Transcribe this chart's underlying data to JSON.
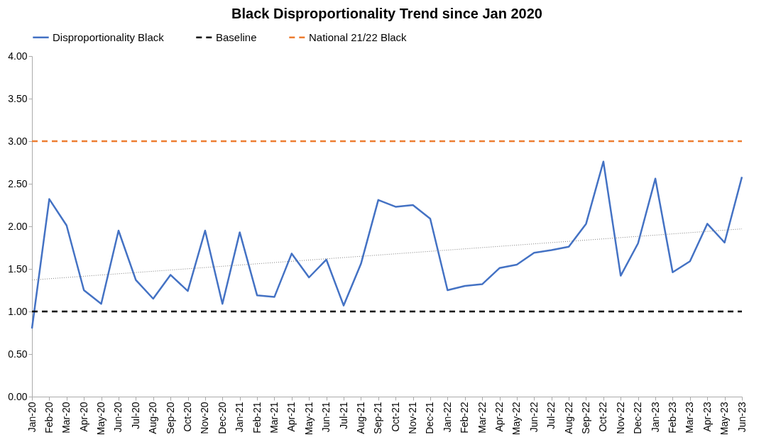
{
  "chart_data": {
    "type": "line",
    "title": "Black Disproportionality Trend since Jan 2020",
    "categories": [
      "Jan-20",
      "Feb-20",
      "Mar-20",
      "Apr-20",
      "May-20",
      "Jun-20",
      "Jul-20",
      "Aug-20",
      "Sep-20",
      "Oct-20",
      "Nov-20",
      "Dec-20",
      "Jan-21",
      "Feb-21",
      "Mar-21",
      "Apr-21",
      "May-21",
      "Jun-21",
      "Jul-21",
      "Aug-21",
      "Sep-21",
      "Oct-21",
      "Nov-21",
      "Dec-21",
      "Jan-22",
      "Feb-22",
      "Mar-22",
      "Apr-22",
      "May-22",
      "Jun-22",
      "Jul-22",
      "Aug-22",
      "Sep-22",
      "Oct-22",
      "Nov-22",
      "Dec-22",
      "Jan-23",
      "Feb-23",
      "Mar-23",
      "Apr-23",
      "May-23",
      "Jun-23"
    ],
    "series": [
      {
        "name": "Disproportionality Black",
        "color": "#4472c4",
        "line_style": "solid",
        "values": [
          0.8,
          2.32,
          2.01,
          1.25,
          1.09,
          1.95,
          1.37,
          1.15,
          1.43,
          1.24,
          1.95,
          1.09,
          1.93,
          1.19,
          1.17,
          1.68,
          1.4,
          1.61,
          1.07,
          1.56,
          2.31,
          2.23,
          2.25,
          2.09,
          1.25,
          1.3,
          1.32,
          1.51,
          1.55,
          1.69,
          1.72,
          1.76,
          2.03,
          2.76,
          1.42,
          1.8,
          2.56,
          1.46,
          1.59,
          2.03,
          1.81,
          2.58
        ]
      },
      {
        "name": "Baseline",
        "color": "#000000",
        "line_style": "dashed",
        "values": [
          1,
          1,
          1,
          1,
          1,
          1,
          1,
          1,
          1,
          1,
          1,
          1,
          1,
          1,
          1,
          1,
          1,
          1,
          1,
          1,
          1,
          1,
          1,
          1,
          1,
          1,
          1,
          1,
          1,
          1,
          1,
          1,
          1,
          1,
          1,
          1,
          1,
          1,
          1,
          1,
          1,
          1
        ]
      },
      {
        "name": "National 21/22 Black",
        "color": "#ed7d31",
        "line_style": "dashed",
        "values": [
          3,
          3,
          3,
          3,
          3,
          3,
          3,
          3,
          3,
          3,
          3,
          3,
          3,
          3,
          3,
          3,
          3,
          3,
          3,
          3,
          3,
          3,
          3,
          3,
          3,
          3,
          3,
          3,
          3,
          3,
          3,
          3,
          3,
          3,
          3,
          3,
          3,
          3,
          3,
          3,
          3,
          3
        ]
      },
      {
        "type": "line",
        "color": "#808080",
        "line_style": "dotted",
        "x": [
          "Jan-20",
          "Jun-23"
        ],
        "values": [
          1.37,
          1.97
        ]
      }
    ],
    "ylim": [
      0,
      4
    ],
    "yticks": [
      {
        "value": 0,
        "label": "0.00"
      },
      {
        "value": 0.5,
        "label": "0.50"
      },
      {
        "value": 1,
        "label": "1.00"
      },
      {
        "value": 1.5,
        "label": "1.50"
      },
      {
        "value": 2,
        "label": "2.00"
      },
      {
        "value": 2.5,
        "label": "2.50"
      },
      {
        "value": 3,
        "label": "3.00"
      },
      {
        "value": 3.5,
        "label": "3.50"
      },
      {
        "value": 4,
        "label": "4.00"
      }
    ],
    "grid": false,
    "legend": "top",
    "marker": "none"
  }
}
